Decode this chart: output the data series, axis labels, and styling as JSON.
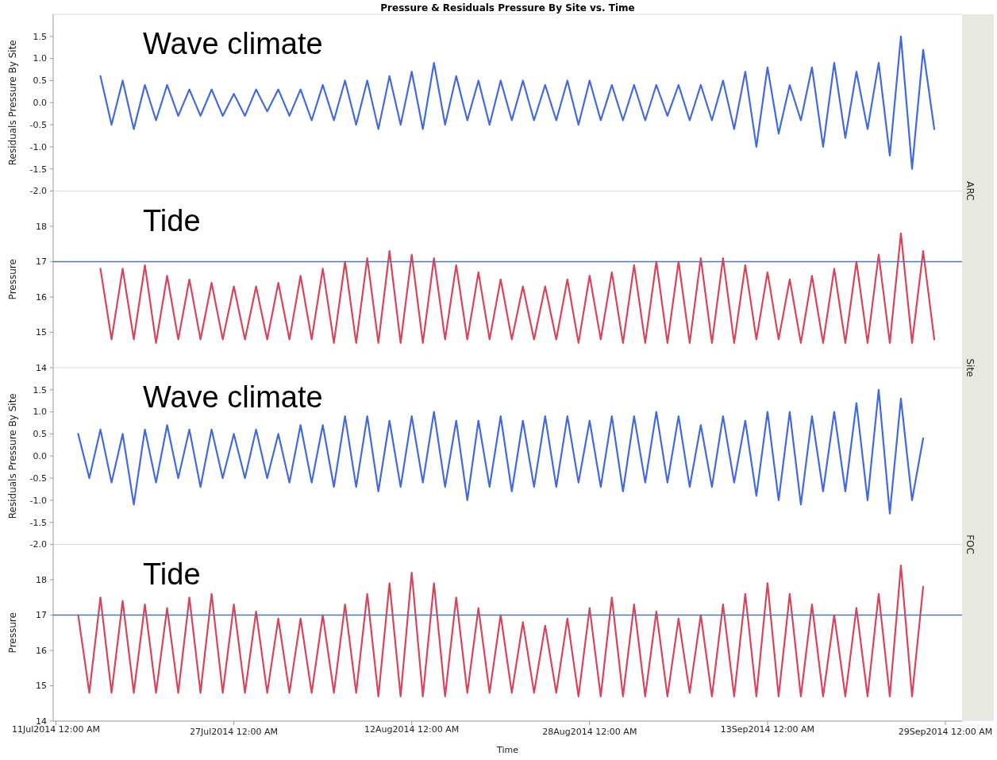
{
  "chart_data": [
    {
      "type": "line",
      "title": "Pressure & Residuals Pressure By Site vs. Time",
      "ylabel": "Residuals Pressure By Site",
      "annotations": [
        "Wave climate"
      ],
      "tick_labels": "y",
      "xlim": [
        "2014-07-10T18:00",
        "2014-09-30T12:00"
      ],
      "ylim": [
        -2,
        2
      ],
      "yticks": [
        {
          "value": -2,
          "label": "-2.0"
        },
        {
          "value": -1.5,
          "label": "-1.5"
        },
        {
          "value": -1,
          "label": "-1.0"
        },
        {
          "value": -0.5,
          "label": "-0.5"
        },
        {
          "value": 0,
          "label": "0.0"
        },
        {
          "value": 0.5,
          "label": "0.5"
        },
        {
          "value": 1,
          "label": "1.0"
        },
        {
          "value": 1.5,
          "label": "1.5"
        }
      ],
      "x": [
        "2014-07-15",
        "2014-07-16",
        "2014-07-17",
        "2014-07-18",
        "2014-07-19",
        "2014-07-20",
        "2014-07-21",
        "2014-07-22",
        "2014-07-23",
        "2014-07-24",
        "2014-07-25",
        "2014-07-26",
        "2014-07-27",
        "2014-07-28",
        "2014-07-29",
        "2014-07-30",
        "2014-07-31",
        "2014-08-01",
        "2014-08-02",
        "2014-08-03",
        "2014-08-04",
        "2014-08-05",
        "2014-08-06",
        "2014-08-07",
        "2014-08-08",
        "2014-08-09",
        "2014-08-10",
        "2014-08-11",
        "2014-08-12",
        "2014-08-13",
        "2014-08-14",
        "2014-08-15",
        "2014-08-16",
        "2014-08-17",
        "2014-08-18",
        "2014-08-19",
        "2014-08-20",
        "2014-08-21",
        "2014-08-22",
        "2014-08-23",
        "2014-08-24",
        "2014-08-25",
        "2014-08-26",
        "2014-08-27",
        "2014-08-28",
        "2014-08-29",
        "2014-08-30",
        "2014-08-31",
        "2014-09-01",
        "2014-09-02",
        "2014-09-03",
        "2014-09-04",
        "2014-09-05",
        "2014-09-06",
        "2014-09-07",
        "2014-09-08",
        "2014-09-09",
        "2014-09-10",
        "2014-09-11",
        "2014-09-12",
        "2014-09-13",
        "2014-09-14",
        "2014-09-15",
        "2014-09-16",
        "2014-09-17",
        "2014-09-18",
        "2014-09-19",
        "2014-09-20",
        "2014-09-21",
        "2014-09-22",
        "2014-09-23",
        "2014-09-24",
        "2014-09-25",
        "2014-09-26",
        "2014-09-27",
        "2014-09-28"
      ],
      "series": [
        {
          "color": "#4169e1",
          "values": [
            0.6,
            -0.5,
            0.5,
            -0.6,
            0.4,
            -0.4,
            0.4,
            -0.3,
            0.3,
            -0.3,
            0.3,
            -0.3,
            0.2,
            -0.3,
            0.3,
            -0.2,
            0.3,
            -0.3,
            0.3,
            -0.4,
            0.4,
            -0.4,
            0.5,
            -0.5,
            0.5,
            -0.6,
            0.6,
            -0.5,
            0.7,
            -0.6,
            0.9,
            -0.5,
            0.6,
            -0.4,
            0.5,
            -0.5,
            0.5,
            -0.4,
            0.5,
            -0.4,
            0.4,
            -0.4,
            0.5,
            -0.5,
            0.5,
            -0.4,
            0.4,
            -0.4,
            0.4,
            -0.4,
            0.4,
            -0.3,
            0.4,
            -0.4,
            0.4,
            -0.4,
            0.5,
            -0.6,
            0.7,
            -1.0,
            0.8,
            -0.7,
            0.4,
            -0.4,
            0.8,
            -1.0,
            0.9,
            -0.8,
            0.7,
            -0.6,
            0.9,
            -1.2,
            1.5,
            -1.5,
            1.2,
            -0.6
          ]
        }
      ]
    },
    {
      "type": "line",
      "ylabel": "Pressure",
      "annotations": [
        "Tide",
        "ARC"
      ],
      "tick_labels": "y",
      "xlim": [
        "2014-07-10T18:00",
        "2014-09-30T12:00"
      ],
      "ylim": [
        14,
        19
      ],
      "yticks": [
        14,
        15,
        16,
        17,
        18
      ],
      "ref_lines": [
        {
          "axis": "y",
          "value": 17,
          "color": "#4a7ab8"
        }
      ],
      "x": [
        "2014-07-15",
        "2014-07-16",
        "2014-07-17",
        "2014-07-18",
        "2014-07-19",
        "2014-07-20",
        "2014-07-21",
        "2014-07-22",
        "2014-07-23",
        "2014-07-24",
        "2014-07-25",
        "2014-07-26",
        "2014-07-27",
        "2014-07-28",
        "2014-07-29",
        "2014-07-30",
        "2014-07-31",
        "2014-08-01",
        "2014-08-02",
        "2014-08-03",
        "2014-08-04",
        "2014-08-05",
        "2014-08-06",
        "2014-08-07",
        "2014-08-08",
        "2014-08-09",
        "2014-08-10",
        "2014-08-11",
        "2014-08-12",
        "2014-08-13",
        "2014-08-14",
        "2014-08-15",
        "2014-08-16",
        "2014-08-17",
        "2014-08-18",
        "2014-08-19",
        "2014-08-20",
        "2014-08-21",
        "2014-08-22",
        "2014-08-23",
        "2014-08-24",
        "2014-08-25",
        "2014-08-26",
        "2014-08-27",
        "2014-08-28",
        "2014-08-29",
        "2014-08-30",
        "2014-08-31",
        "2014-09-01",
        "2014-09-02",
        "2014-09-03",
        "2014-09-04",
        "2014-09-05",
        "2014-09-06",
        "2014-09-07",
        "2014-09-08",
        "2014-09-09",
        "2014-09-10",
        "2014-09-11",
        "2014-09-12",
        "2014-09-13",
        "2014-09-14",
        "2014-09-15",
        "2014-09-16",
        "2014-09-17",
        "2014-09-18",
        "2014-09-19",
        "2014-09-20",
        "2014-09-21",
        "2014-09-22",
        "2014-09-23",
        "2014-09-24",
        "2014-09-25",
        "2014-09-26",
        "2014-09-27",
        "2014-09-28"
      ],
      "series": [
        {
          "color": "#d9445a",
          "values": [
            16.8,
            14.8,
            16.8,
            14.8,
            16.9,
            14.7,
            16.6,
            14.8,
            16.5,
            14.8,
            16.4,
            14.8,
            16.3,
            14.8,
            16.3,
            14.8,
            16.4,
            14.8,
            16.6,
            14.8,
            16.8,
            14.7,
            17.0,
            14.7,
            17.1,
            14.7,
            17.3,
            14.7,
            17.2,
            14.7,
            17.1,
            14.8,
            16.9,
            14.8,
            16.7,
            14.8,
            16.5,
            14.8,
            16.3,
            14.8,
            16.3,
            14.8,
            16.5,
            14.7,
            16.6,
            14.8,
            16.7,
            14.7,
            16.9,
            14.7,
            17.0,
            14.7,
            17.0,
            14.7,
            17.1,
            14.7,
            17.1,
            14.7,
            16.9,
            14.8,
            16.7,
            14.8,
            16.5,
            14.7,
            16.6,
            14.7,
            16.8,
            14.7,
            17.0,
            14.7,
            17.2,
            14.7,
            17.8,
            14.7,
            17.3,
            14.8
          ]
        }
      ]
    },
    {
      "type": "line",
      "ylabel": "Residuals Pressure By Site",
      "annotations": [
        "Wave climate",
        "Site"
      ],
      "tick_labels": "y",
      "xlim": [
        "2014-07-10T18:00",
        "2014-09-30T12:00"
      ],
      "ylim": [
        -2,
        2
      ],
      "yticks": [
        {
          "value": -2,
          "label": "-2.0"
        },
        {
          "value": -1.5,
          "label": "-1.5"
        },
        {
          "value": -1,
          "label": "-1.0"
        },
        {
          "value": -0.5,
          "label": "-0.5"
        },
        {
          "value": 0,
          "label": "0.0"
        },
        {
          "value": 0.5,
          "label": "0.5"
        },
        {
          "value": 1,
          "label": "1.0"
        },
        {
          "value": 1.5,
          "label": "1.5"
        }
      ],
      "x": [
        "2014-07-13",
        "2014-07-14",
        "2014-07-15",
        "2014-07-16",
        "2014-07-17",
        "2014-07-18",
        "2014-07-19",
        "2014-07-20",
        "2014-07-21",
        "2014-07-22",
        "2014-07-23",
        "2014-07-24",
        "2014-07-25",
        "2014-07-26",
        "2014-07-27",
        "2014-07-28",
        "2014-07-29",
        "2014-07-30",
        "2014-07-31",
        "2014-08-01",
        "2014-08-02",
        "2014-08-03",
        "2014-08-04",
        "2014-08-05",
        "2014-08-06",
        "2014-08-07",
        "2014-08-08",
        "2014-08-09",
        "2014-08-10",
        "2014-08-11",
        "2014-08-12",
        "2014-08-13",
        "2014-08-14",
        "2014-08-15",
        "2014-08-16",
        "2014-08-17",
        "2014-08-18",
        "2014-08-19",
        "2014-08-20",
        "2014-08-21",
        "2014-08-22",
        "2014-08-23",
        "2014-08-24",
        "2014-08-25",
        "2014-08-26",
        "2014-08-27",
        "2014-08-28",
        "2014-08-29",
        "2014-08-30",
        "2014-08-31",
        "2014-09-01",
        "2014-09-02",
        "2014-09-03",
        "2014-09-04",
        "2014-09-05",
        "2014-09-06",
        "2014-09-07",
        "2014-09-08",
        "2014-09-09",
        "2014-09-10",
        "2014-09-11",
        "2014-09-12",
        "2014-09-13",
        "2014-09-14",
        "2014-09-15",
        "2014-09-16",
        "2014-09-17",
        "2014-09-18",
        "2014-09-19",
        "2014-09-20",
        "2014-09-21",
        "2014-09-22",
        "2014-09-23",
        "2014-09-24",
        "2014-09-25",
        "2014-09-26",
        "2014-09-27"
      ],
      "series": [
        {
          "color": "#4169e1",
          "values": [
            0.5,
            -0.5,
            0.6,
            -0.6,
            0.5,
            -1.1,
            0.6,
            -0.6,
            0.7,
            -0.5,
            0.6,
            -0.7,
            0.6,
            -0.5,
            0.5,
            -0.5,
            0.6,
            -0.5,
            0.5,
            -0.6,
            0.7,
            -0.6,
            0.7,
            -0.7,
            0.9,
            -0.7,
            0.9,
            -0.8,
            0.8,
            -0.7,
            0.9,
            -0.6,
            1.0,
            -0.7,
            0.8,
            -1.0,
            0.8,
            -0.7,
            0.9,
            -0.8,
            0.8,
            -0.7,
            0.9,
            -0.7,
            0.9,
            -0.6,
            0.8,
            -0.7,
            0.9,
            -0.8,
            0.9,
            -0.6,
            1.0,
            -0.6,
            0.9,
            -0.7,
            0.7,
            -0.7,
            0.9,
            -0.6,
            0.8,
            -0.9,
            1.0,
            -1.0,
            1.0,
            -1.1,
            0.9,
            -0.8,
            1.0,
            -0.8,
            1.2,
            -1.0,
            1.5,
            -1.3,
            1.3,
            -1.0,
            0.4
          ]
        }
      ]
    },
    {
      "type": "line",
      "ylabel": "Pressure",
      "xlabel": "Time",
      "annotations": [
        "Tide",
        "FOC"
      ],
      "xlim": [
        "2014-07-10T18:00",
        "2014-09-30T12:00"
      ],
      "xticks": [
        {
          "value": "2014-07-11",
          "label": "11Jul2014 12:00 AM"
        },
        {
          "value": "2014-07-27",
          "label": "27Jul2014 12:00 AM"
        },
        {
          "value": "2014-08-12",
          "label": "12Aug2014 12:00 AM"
        },
        {
          "value": "2014-08-28",
          "label": "28Aug2014 12:00 AM"
        },
        {
          "value": "2014-09-13",
          "label": "13Sep2014 12:00 AM"
        },
        {
          "value": "2014-09-29",
          "label": "29Sep2014 12:00 AM"
        }
      ],
      "ylim": [
        14,
        19
      ],
      "yticks": [
        14,
        15,
        16,
        17,
        18
      ],
      "ref_lines": [
        {
          "axis": "y",
          "value": 17,
          "color": "#4a7ab8"
        }
      ],
      "x": [
        "2014-07-13",
        "2014-07-14",
        "2014-07-15",
        "2014-07-16",
        "2014-07-17",
        "2014-07-18",
        "2014-07-19",
        "2014-07-20",
        "2014-07-21",
        "2014-07-22",
        "2014-07-23",
        "2014-07-24",
        "2014-07-25",
        "2014-07-26",
        "2014-07-27",
        "2014-07-28",
        "2014-07-29",
        "2014-07-30",
        "2014-07-31",
        "2014-08-01",
        "2014-08-02",
        "2014-08-03",
        "2014-08-04",
        "2014-08-05",
        "2014-08-06",
        "2014-08-07",
        "2014-08-08",
        "2014-08-09",
        "2014-08-10",
        "2014-08-11",
        "2014-08-12",
        "2014-08-13",
        "2014-08-14",
        "2014-08-15",
        "2014-08-16",
        "2014-08-17",
        "2014-08-18",
        "2014-08-19",
        "2014-08-20",
        "2014-08-21",
        "2014-08-22",
        "2014-08-23",
        "2014-08-24",
        "2014-08-25",
        "2014-08-26",
        "2014-08-27",
        "2014-08-28",
        "2014-08-29",
        "2014-08-30",
        "2014-08-31",
        "2014-09-01",
        "2014-09-02",
        "2014-09-03",
        "2014-09-04",
        "2014-09-05",
        "2014-09-06",
        "2014-09-07",
        "2014-09-08",
        "2014-09-09",
        "2014-09-10",
        "2014-09-11",
        "2014-09-12",
        "2014-09-13",
        "2014-09-14",
        "2014-09-15",
        "2014-09-16",
        "2014-09-17",
        "2014-09-18",
        "2014-09-19",
        "2014-09-20",
        "2014-09-21",
        "2014-09-22",
        "2014-09-23",
        "2014-09-24",
        "2014-09-25",
        "2014-09-26",
        "2014-09-27"
      ],
      "series": [
        {
          "color": "#d9445a",
          "values": [
            17.0,
            14.8,
            17.5,
            14.8,
            17.4,
            14.8,
            17.3,
            14.8,
            17.2,
            14.8,
            17.5,
            14.8,
            17.6,
            14.8,
            17.3,
            14.8,
            17.1,
            14.8,
            16.9,
            14.8,
            16.9,
            14.8,
            17.0,
            14.8,
            17.3,
            14.8,
            17.6,
            14.7,
            17.9,
            14.7,
            18.2,
            14.7,
            17.9,
            14.7,
            17.5,
            14.8,
            17.2,
            14.8,
            17.0,
            14.8,
            16.8,
            14.8,
            16.7,
            14.8,
            16.9,
            14.7,
            17.2,
            14.7,
            17.5,
            14.7,
            17.3,
            14.7,
            17.1,
            14.7,
            16.9,
            14.8,
            17.0,
            14.7,
            17.3,
            14.7,
            17.6,
            14.7,
            17.9,
            14.7,
            17.6,
            14.7,
            17.3,
            14.7,
            17.0,
            14.7,
            17.2,
            14.7,
            17.6,
            14.7,
            18.4,
            14.7,
            17.8
          ]
        }
      ]
    }
  ]
}
